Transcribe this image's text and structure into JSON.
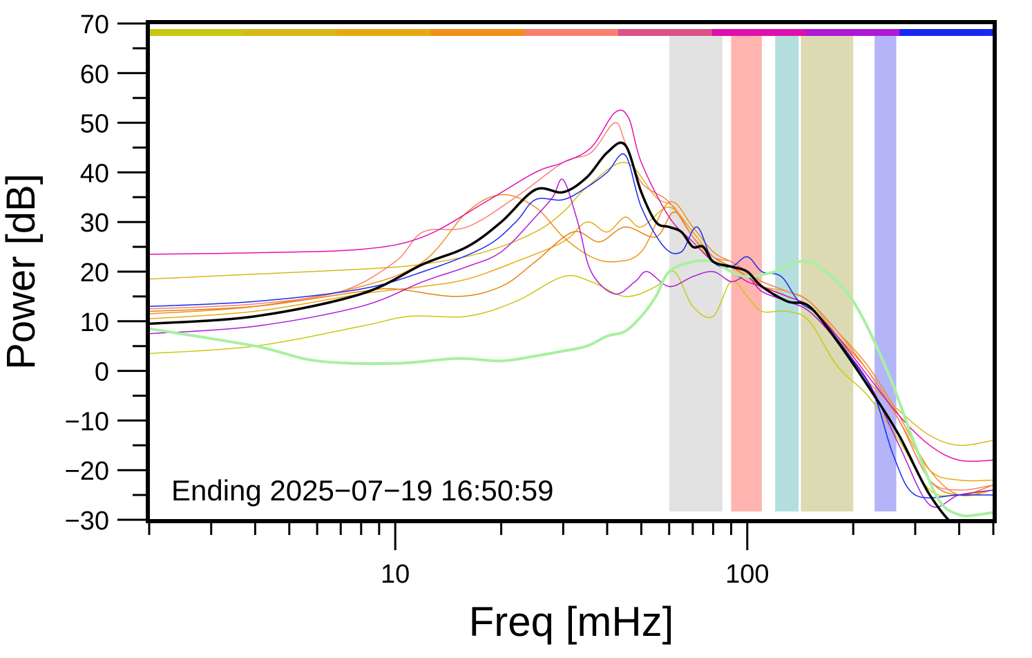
{
  "chart_data": {
    "type": "line",
    "title": "",
    "xlabel": "Freq [mHz]",
    "ylabel": "Power [dB]",
    "xscale": "log",
    "xlim": [
      2,
      500
    ],
    "ylim": [
      -30,
      70
    ],
    "grid": false,
    "legend": "none",
    "annotation": "Ending 2025−07−19 16:50:59",
    "x_ticks": [
      {
        "value": 10,
        "label": "10"
      },
      {
        "value": 100,
        "label": "100"
      }
    ],
    "y_ticks": [
      {
        "value": 70,
        "label": "70"
      },
      {
        "value": 60,
        "label": "60"
      },
      {
        "value": 50,
        "label": "50"
      },
      {
        "value": 40,
        "label": "40"
      },
      {
        "value": 30,
        "label": "30"
      },
      {
        "value": 20,
        "label": "20"
      },
      {
        "value": 10,
        "label": "10"
      },
      {
        "value": 0,
        "label": "0"
      },
      {
        "value": -10,
        "label": "−10"
      },
      {
        "value": -20,
        "label": "−20"
      },
      {
        "value": -30,
        "label": "−30"
      }
    ],
    "top_color_bar": [
      "#c8c810",
      "#d8b818",
      "#e8a810",
      "#f09018",
      "#f88070",
      "#e05088",
      "#e010b0",
      "#b018d8",
      "#1828f0"
    ],
    "shaded_bands": [
      {
        "x": [
          60,
          85
        ],
        "color": "#e2e2e2"
      },
      {
        "x": [
          90,
          110
        ],
        "color": "#ffb4b0"
      },
      {
        "x": [
          120,
          140
        ],
        "color": "#b4dede"
      },
      {
        "x": [
          142,
          200
        ],
        "color": "#dcdab2"
      },
      {
        "x": [
          230,
          265
        ],
        "color": "#b4b4f8"
      }
    ],
    "series": [
      {
        "color": "#c8c810",
        "width": 1.5,
        "x": [
          2,
          4,
          8,
          11,
          16,
          22,
          30,
          36,
          45,
          55,
          62,
          70,
          80,
          90,
          100,
          110,
          130,
          150,
          180,
          220,
          270,
          330,
          400,
          500
        ],
        "y": [
          3.5,
          5,
          9,
          11,
          11,
          14,
          19,
          18,
          15,
          17,
          20,
          13,
          11,
          18,
          15,
          12,
          12,
          10,
          1,
          -5,
          -14,
          -24,
          -25,
          -24
        ]
      },
      {
        "color": "#d8b818",
        "width": 1.5,
        "x": [
          2,
          4,
          8,
          12,
          18,
          25,
          30,
          35,
          45,
          55,
          62,
          70,
          80,
          90,
          100,
          110,
          130,
          150,
          180,
          220,
          270,
          330,
          400,
          500
        ],
        "y": [
          18.5,
          19.5,
          20.5,
          21.5,
          24,
          28,
          32,
          37,
          42,
          35,
          33,
          27,
          22,
          21,
          19,
          17,
          16,
          14,
          7,
          -2,
          -8,
          -13,
          -15,
          -14
        ]
      },
      {
        "color": "#e8a810",
        "width": 1.5,
        "x": [
          2,
          4,
          8,
          12,
          16,
          22,
          30,
          35,
          40,
          45,
          50,
          60,
          70,
          80,
          90,
          100,
          110,
          130,
          150,
          180,
          220,
          270,
          330,
          400,
          500
        ],
        "y": [
          10.5,
          12,
          15.5,
          17,
          18.5,
          22,
          26,
          30,
          28,
          31,
          29,
          33,
          28,
          23,
          21,
          19,
          17,
          15,
          13,
          7,
          0,
          -10,
          -20,
          -22,
          -22
        ]
      },
      {
        "color": "#f09018",
        "width": 1.5,
        "x": [
          2,
          4,
          8,
          12,
          16,
          20,
          25,
          30,
          36,
          42,
          50,
          60,
          70,
          80,
          90,
          100,
          110,
          130,
          150,
          180,
          220,
          270,
          330,
          400,
          500
        ],
        "y": [
          11.5,
          13,
          17,
          22,
          32,
          35.5,
          33,
          27,
          23,
          22,
          24,
          34,
          29,
          24,
          22,
          20,
          18,
          16,
          14,
          8,
          1,
          -9,
          -20,
          -25,
          -24
        ]
      },
      {
        "color": "#e88010",
        "width": 1.5,
        "x": [
          2,
          4,
          8,
          10,
          15,
          20,
          25,
          32,
          38,
          45,
          55,
          62,
          70,
          80,
          90,
          100,
          110,
          130,
          150,
          180,
          220,
          270,
          330,
          400,
          500
        ],
        "y": [
          12,
          13,
          16,
          16.5,
          15,
          17,
          22,
          28,
          26,
          29,
          27,
          32,
          27,
          23,
          21,
          19,
          17,
          15,
          13,
          7,
          0,
          -10,
          -22,
          -25,
          -23
        ]
      },
      {
        "color": "#f88070",
        "width": 1.5,
        "x": [
          2,
          4,
          7,
          10,
          12,
          16,
          22,
          30,
          36,
          42,
          45,
          50,
          60,
          70,
          80,
          90,
          100,
          110,
          130,
          150,
          180,
          220,
          270,
          330,
          400,
          500
        ],
        "y": [
          12.5,
          13.5,
          16,
          22,
          28,
          29,
          35,
          42,
          44,
          50,
          46,
          38,
          34,
          27,
          23,
          22,
          20,
          18,
          16,
          14,
          8,
          0,
          -10,
          -22,
          -24,
          -23
        ]
      },
      {
        "color": "#e010b0",
        "width": 1.5,
        "x": [
          2,
          4,
          8,
          12,
          18,
          25,
          30,
          36,
          42,
          46,
          50,
          60,
          70,
          80,
          90,
          100,
          110,
          130,
          150,
          180,
          220,
          270,
          330,
          400,
          500
        ],
        "y": [
          23.5,
          23.8,
          24.5,
          27,
          34,
          40,
          42,
          45,
          52,
          51,
          42,
          31,
          26,
          22,
          20,
          18,
          17,
          15,
          13,
          7,
          -1,
          -9,
          -15,
          -18,
          -18
        ]
      },
      {
        "color": "#b018d8",
        "width": 1.5,
        "x": [
          2,
          4,
          8,
          12,
          16,
          20,
          25,
          28,
          30,
          33,
          36,
          42,
          48,
          52,
          60,
          70,
          80,
          90,
          100,
          110,
          130,
          150,
          180,
          220,
          270,
          330,
          400,
          500
        ],
        "y": [
          7.5,
          9,
          13,
          18,
          21,
          24,
          31,
          35,
          38.5,
          30,
          20,
          15.5,
          18,
          20,
          17,
          19,
          20,
          18,
          19,
          16,
          14,
          12,
          6,
          -2,
          -15,
          -27,
          -25,
          -24
        ]
      },
      {
        "color": "#1828f0",
        "width": 1.5,
        "x": [
          2,
          4,
          8,
          12,
          18,
          22,
          25,
          30,
          35,
          40,
          45,
          50,
          58,
          65,
          72,
          80,
          90,
          100,
          110,
          125,
          140,
          160,
          200,
          230,
          260,
          300,
          400,
          500
        ],
        "y": [
          13,
          14,
          16.5,
          20,
          25,
          30,
          34.5,
          34.5,
          37,
          40,
          43.5,
          33,
          25,
          24,
          29,
          22,
          21,
          23,
          20,
          19,
          14,
          11,
          2,
          -5,
          -17,
          -25,
          -25,
          -25
        ]
      },
      {
        "color": "#a8f0a0",
        "width": 4,
        "x": [
          2,
          4,
          6,
          10,
          15,
          20,
          25,
          30,
          35,
          40,
          45,
          50,
          55,
          60,
          70,
          80,
          90,
          100,
          120,
          140,
          160,
          200,
          250,
          300,
          350,
          400,
          450,
          500
        ],
        "y": [
          8.5,
          5,
          2,
          1.5,
          2.5,
          2,
          3,
          4,
          5,
          7,
          8,
          11,
          15,
          20,
          22,
          22,
          20,
          19,
          20,
          22,
          21,
          14,
          0,
          -15,
          -26,
          -29,
          -29,
          -28.5
        ]
      },
      {
        "color": "#000000",
        "width": 3.5,
        "x": [
          2,
          4,
          8,
          12,
          16,
          20,
          25,
          30,
          35,
          40,
          45,
          50,
          55,
          60,
          65,
          70,
          75,
          80,
          90,
          100,
          110,
          130,
          150,
          180,
          220,
          270,
          330,
          400,
          500
        ],
        "y": [
          9.5,
          11,
          15.5,
          21.5,
          25,
          30,
          36.5,
          36,
          39,
          44,
          45.5,
          36,
          30,
          29,
          28,
          25,
          25,
          22,
          21,
          20,
          17,
          14,
          13,
          6,
          -3,
          -13,
          -25,
          -32,
          -35
        ]
      }
    ]
  }
}
